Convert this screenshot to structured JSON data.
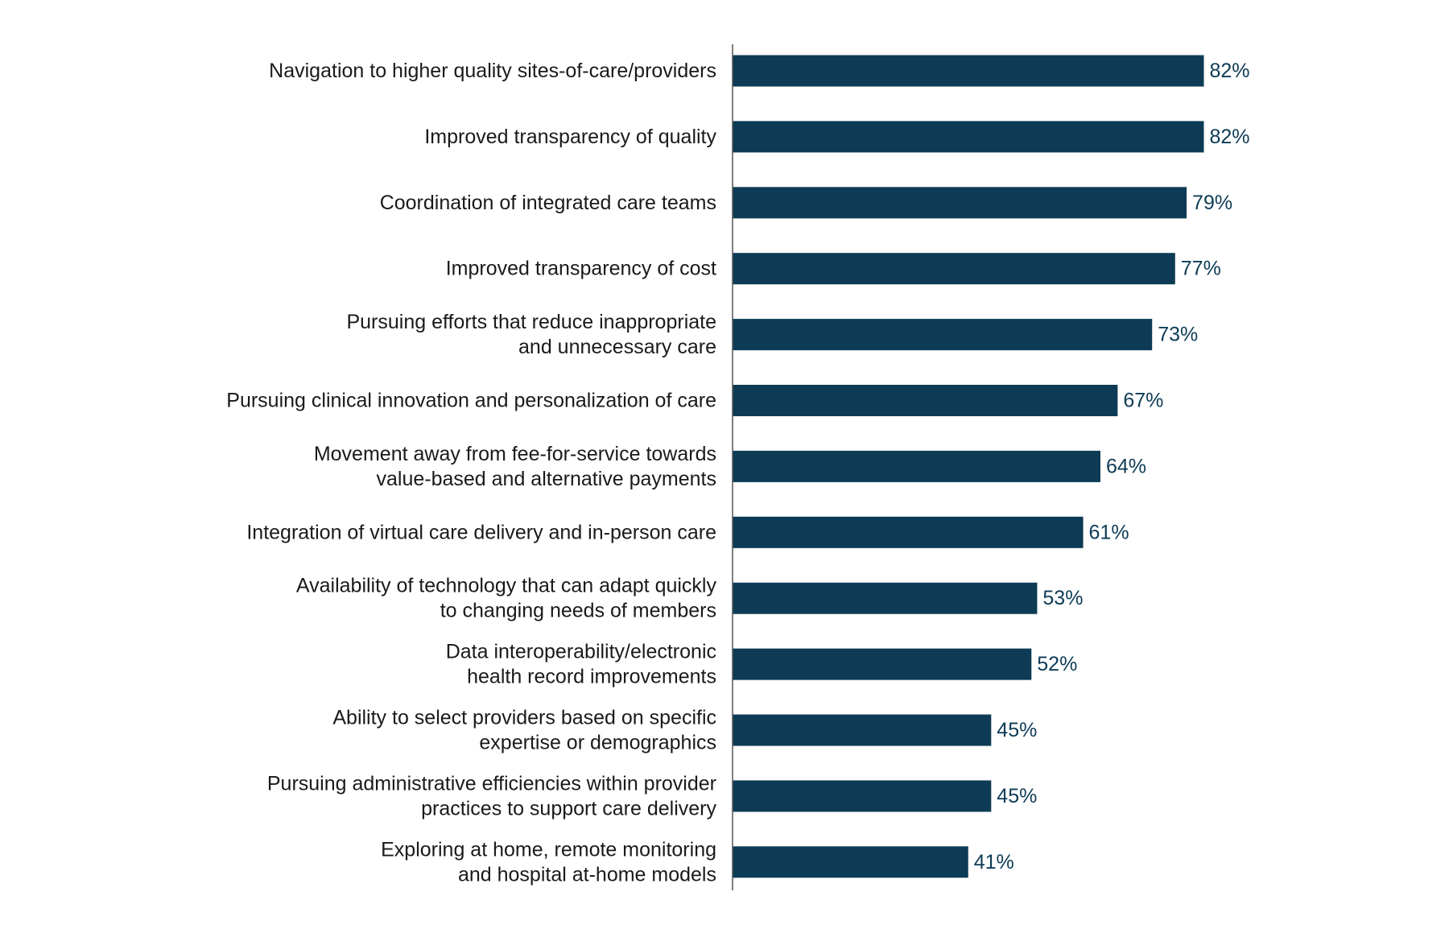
{
  "chart_data": {
    "type": "bar",
    "orientation": "horizontal",
    "bar_color": "#0d3b55",
    "label_color": "#0d3b55",
    "axis_color": "#555555",
    "xlim": [
      0,
      100
    ],
    "grid": false,
    "categories": [
      [
        "Navigation to higher quality sites-of-care/providers"
      ],
      [
        "Improved transparency of quality"
      ],
      [
        "Coordination of integrated care teams"
      ],
      [
        "Improved transparency of cost"
      ],
      [
        "Pursuing efforts that reduce inappropriate",
        "and unnecessary care"
      ],
      [
        "Pursuing clinical innovation and personalization of care"
      ],
      [
        "Movement away from fee-for-service towards",
        "value-based and alternative payments"
      ],
      [
        "Integration of virtual care delivery and in-person care"
      ],
      [
        "Availability of technology that can adapt quickly",
        "to changing needs of members"
      ],
      [
        "Data interoperability/electronic",
        "health record improvements"
      ],
      [
        "Ability to select providers based on specific",
        "expertise or demographics"
      ],
      [
        "Pursuing administrative efficiencies within provider",
        "practices to support care delivery"
      ],
      [
        "Exploring at home, remote monitoring",
        "and hospital at-home models"
      ]
    ],
    "values": [
      82,
      82,
      79,
      77,
      73,
      67,
      64,
      61,
      53,
      52,
      45,
      45,
      41
    ],
    "value_labels": [
      "82%",
      "82%",
      "79%",
      "77%",
      "73%",
      "67%",
      "64%",
      "61%",
      "53%",
      "52%",
      "45%",
      "45%",
      "41%"
    ]
  }
}
